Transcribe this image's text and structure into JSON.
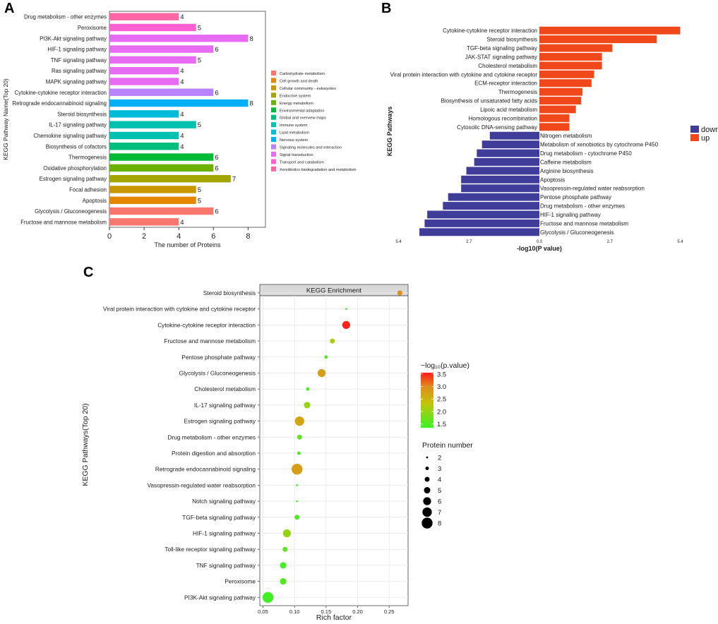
{
  "panels": {
    "a": {
      "letter": "A"
    },
    "b": {
      "letter": "B"
    },
    "c": {
      "letter": "C"
    }
  },
  "chart_data": [
    {
      "id": "A",
      "type": "bar",
      "orientation": "horizontal",
      "xlabel": "The number of Proteins",
      "ylabel": "KEGG Pathway Name(Top 20)",
      "xlim": [
        0,
        9
      ],
      "xticks": [
        "0",
        "2",
        "4",
        "6",
        "8"
      ],
      "legend_position": "right",
      "categories": [
        "Drug metabolism - other enzymes",
        "Peroxisome",
        "PI3K-Akt signaling pathway",
        "HIF-1 signaling pathway",
        "TNF signaling pathway",
        "Ras signaling pathway",
        "MAPK signaling pathway",
        "Cytokine-cytokine receptor interaction",
        "Retrograde endocannabinoid signaling",
        "Steroid biosynthesis",
        "IL-17 signaling pathway",
        "Chemokine signaling pathway",
        "Biosynthesis of cofactors",
        "Thermogenesis",
        "Oxidative phosphorylation",
        "Estrogen signaling pathway",
        "Focal adhesion",
        "Apoptosis",
        "Glycolysis / Gluconeogenesis",
        "Fructose and mannose metabolism"
      ],
      "values": [
        4,
        5,
        8,
        6,
        5,
        4,
        4,
        6,
        8,
        4,
        5,
        4,
        4,
        6,
        6,
        7,
        5,
        5,
        6,
        4
      ],
      "value_labels": [
        "4",
        "5",
        "8",
        "6",
        "5",
        "4",
        "4",
        "6",
        "8",
        "4",
        "5",
        "4",
        "4",
        "6",
        "6",
        "7",
        "5",
        "5",
        "6",
        "4"
      ],
      "groups": [
        "Xenobiotics biodegradation and metabolism",
        "Transport and catabolism",
        "Signal transduction",
        "Signal transduction",
        "Signal transduction",
        "Signal transduction",
        "Signal transduction",
        "Signaling molecules and interaction",
        "Nervous system",
        "Lipid metabolism",
        "Immune system",
        "Immune system",
        "Global and overview maps",
        "Environmental adaptation",
        "Energy metabolism",
        "Endocrine system",
        "Cellular community - eukaryotes",
        "Cell growth and death",
        "Carbohydrate metabolism",
        "Carbohydrate metabolism"
      ],
      "legend": [
        {
          "name": "Carbohydrate metabolism",
          "color": "#f8766d"
        },
        {
          "name": "Cell growth and death",
          "color": "#e58700"
        },
        {
          "name": "Cellular community - eukaryotes",
          "color": "#c99800"
        },
        {
          "name": "Endocrine system",
          "color": "#a3a500"
        },
        {
          "name": "Energy metabolism",
          "color": "#6bb100"
        },
        {
          "name": "Environmental adaptation",
          "color": "#00ba38"
        },
        {
          "name": "Global and overview maps",
          "color": "#00bf7d"
        },
        {
          "name": "Immune system",
          "color": "#00c0af"
        },
        {
          "name": "Lipid metabolism",
          "color": "#00bcd8"
        },
        {
          "name": "Nervous system",
          "color": "#00b0f6"
        },
        {
          "name": "Signaling molecules and interaction",
          "color": "#b983ff"
        },
        {
          "name": "Signal transduction",
          "color": "#e76bf3"
        },
        {
          "name": "Transport and catabolism",
          "color": "#fd61d1"
        },
        {
          "name": "Xenobiotics biodegradation and metabolism",
          "color": "#ff67a4"
        }
      ]
    },
    {
      "id": "B",
      "type": "bar",
      "orientation": "horizontal-diverging",
      "xlabel": "-log10(P value)",
      "ylabel": "KEGG Pathways",
      "xlim": [
        -5.4,
        5.4
      ],
      "xticks": [
        "5.4",
        "2.7",
        "0.0",
        "2.7",
        "5.4"
      ],
      "legend_position": "right",
      "legend": [
        {
          "name": "down",
          "color": "#3f3d99"
        },
        {
          "name": "up",
          "color": "#f0481a"
        }
      ],
      "categories": [
        "Cytokine-cytokine receptor interaction",
        "Steroid biosynthesis",
        "TGF-beta signaling pathway",
        "JAK-STAT signaling pathway",
        "Cholesterol metabolism",
        "Viral protein interaction with cytokine and cytokine receptor",
        "ECM-receptor interaction",
        "Thermogenesis",
        "Biosynthesis of unsaturated fatty acids",
        "Lipoic acid metabolism",
        "Homologous recombination",
        "Cytosolic DNA-sensing pathway",
        "Nitrogen metabolism",
        "Metabolism of xenobiotics by cytochrome P450",
        "Drug metabolism - cytochrome P450",
        "Caffeine metabolism",
        "Arginine biosynthesis",
        "Apoptosis",
        "Vasopressin-regulated water reabsorption",
        "Pentose phosphate pathway",
        "Drug metabolism - other enzymes",
        "HIF-1 signaling pathway",
        "Fructose and mannose metabolism",
        "Glycolysis / Gluconeogenesis"
      ],
      "values": [
        5.4,
        4.5,
        2.8,
        2.4,
        2.4,
        2.1,
        2.0,
        1.65,
        1.6,
        1.4,
        1.15,
        1.15,
        -1.9,
        -2.2,
        -2.4,
        -2.5,
        -2.8,
        -3.0,
        -3.0,
        -3.5,
        -3.7,
        -4.3,
        -4.4,
        -4.6
      ],
      "direction": [
        "up",
        "up",
        "up",
        "up",
        "up",
        "up",
        "up",
        "up",
        "up",
        "up",
        "up",
        "up",
        "down",
        "down",
        "down",
        "down",
        "down",
        "down",
        "down",
        "down",
        "down",
        "down",
        "down",
        "down"
      ]
    },
    {
      "id": "C",
      "type": "scatter",
      "title": "KEGG Enrichment",
      "xlabel": "Rich factor",
      "ylabel": "KEGG Pathways(Top 20)",
      "xlim": [
        0.045,
        0.28
      ],
      "xticks": [
        0.05,
        0.1,
        0.15,
        0.2,
        0.25
      ],
      "xtick_labels": [
        "0.05",
        "0.10",
        "0.15",
        "0.20",
        "0.25"
      ],
      "categories": [
        "Steroid biosynthesis",
        "Viral protein interaction with cytokine and cytokine receptor",
        "Cytokine-cytokine receptor interaction",
        "Fructose and mannose metabolism",
        "Pentose phosphate pathway",
        "Glycolysis / Gluconeogenesis",
        "Cholesterol metabolism",
        "IL-17 signaling pathway",
        "Estrogen signaling pathway",
        "Drug metabolism - other enzymes",
        "Protein digestion and absorption",
        "Retrograde endocannabinoid signaling",
        "Vasopressin-regulated water reabsorption",
        "Notch signaling pathway",
        "TGF-beta signaling pathway",
        "HIF-1 signaling pathway",
        "Toll-like receptor signaling pathway",
        "TNF signaling pathway",
        "Peroxisome",
        "PI3K-Akt signaling pathway"
      ],
      "rich_factor": [
        0.267,
        0.182,
        0.182,
        0.16,
        0.15,
        0.143,
        0.121,
        0.12,
        0.108,
        0.108,
        0.107,
        0.104,
        0.104,
        0.104,
        0.104,
        0.088,
        0.085,
        0.082,
        0.082,
        0.058
      ],
      "protein_number": [
        4,
        2,
        6,
        4,
        3,
        6,
        3,
        5,
        7,
        4,
        3,
        8,
        2,
        2,
        4,
        6,
        4,
        5,
        5,
        8
      ],
      "neg_log10_p": [
        3.0,
        1.4,
        3.5,
        2.2,
        1.5,
        2.8,
        1.5,
        2.0,
        2.7,
        1.6,
        1.5,
        2.8,
        1.4,
        1.4,
        1.5,
        2.0,
        1.6,
        1.4,
        1.5,
        1.4
      ],
      "color_legend": {
        "title": "−log₁₀(p.value)",
        "ticks": [
          3.5,
          3.0,
          2.5,
          2.0,
          1.5
        ],
        "tick_labels": [
          "3.5",
          "3.0",
          "2.5",
          "2.0",
          "1.5"
        ],
        "min": 1.35,
        "max": 3.55,
        "colors": [
          "#3af224",
          "#ff1a1a"
        ]
      },
      "size_legend": {
        "title": "Protein number",
        "values": [
          2,
          3,
          4,
          5,
          6,
          7,
          8
        ],
        "labels": [
          "2",
          "3",
          "4",
          "5",
          "6",
          "7",
          "8"
        ]
      }
    }
  ]
}
